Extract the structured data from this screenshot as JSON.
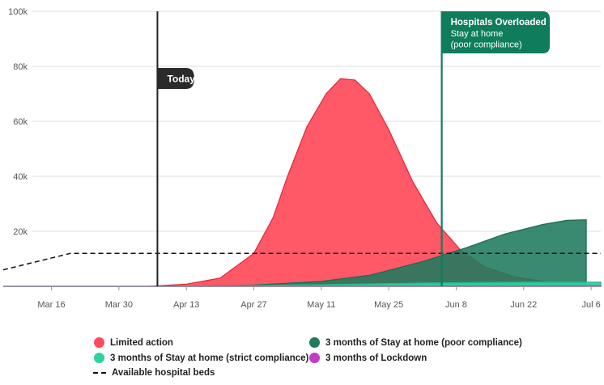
{
  "chart_data": {
    "type": "area",
    "y_ticks": [
      "100k",
      "80k",
      "60k",
      "40k",
      "20k"
    ],
    "ylim": [
      0,
      100000
    ],
    "x_ticks": [
      "Mar 16",
      "Mar 30",
      "Apr 13",
      "Apr 27",
      "May 11",
      "May 25",
      "Jun 8",
      "Jun 22",
      "Jul 6"
    ],
    "x_range": [
      "2020-03-06",
      "2020-07-08"
    ],
    "grid": true,
    "legend_position": "bottom",
    "series": [
      {
        "name": "Limited action",
        "color": "#ff4a5a",
        "line_color": "#e0283c",
        "points": [
          [
            "2020-03-06",
            0
          ],
          [
            "2020-04-05",
            0
          ],
          [
            "2020-04-13",
            800
          ],
          [
            "2020-04-20",
            3000
          ],
          [
            "2020-04-27",
            12000
          ],
          [
            "2020-05-01",
            25000
          ],
          [
            "2020-05-04",
            40000
          ],
          [
            "2020-05-08",
            58000
          ],
          [
            "2020-05-12",
            70000
          ],
          [
            "2020-05-15",
            75500
          ],
          [
            "2020-05-18",
            75000
          ],
          [
            "2020-05-21",
            70000
          ],
          [
            "2020-05-25",
            57000
          ],
          [
            "2020-05-30",
            38000
          ],
          [
            "2020-06-04",
            23000
          ],
          [
            "2020-06-09",
            13000
          ],
          [
            "2020-06-14",
            7000
          ],
          [
            "2020-06-20",
            3500
          ],
          [
            "2020-06-27",
            1500
          ],
          [
            "2020-07-08",
            500
          ]
        ]
      },
      {
        "name": "3 months of Stay at home (poor compliance)",
        "color": "#1f7a5e",
        "line_color": "#1a6b52",
        "points": [
          [
            "2020-03-06",
            0
          ],
          [
            "2020-04-05",
            0
          ],
          [
            "2020-04-20",
            200
          ],
          [
            "2020-04-27",
            500
          ],
          [
            "2020-05-11",
            1800
          ],
          [
            "2020-05-21",
            4000
          ],
          [
            "2020-06-01",
            9000
          ],
          [
            "2020-06-10",
            14000
          ],
          [
            "2020-06-18",
            19000
          ],
          [
            "2020-06-26",
            22500
          ],
          [
            "2020-07-01",
            24000
          ],
          [
            "2020-07-05",
            24200
          ],
          [
            "2020-07-05",
            0
          ]
        ]
      },
      {
        "name": "3 months of Stay at home (strict compliance)",
        "color": "#2fd39e",
        "line_color": "#1fb889",
        "points": [
          [
            "2020-03-06",
            0
          ],
          [
            "2020-04-05",
            0
          ],
          [
            "2020-04-20",
            200
          ],
          [
            "2020-05-11",
            600
          ],
          [
            "2020-06-01",
            1200
          ],
          [
            "2020-06-22",
            1500
          ],
          [
            "2020-07-08",
            1500
          ]
        ]
      },
      {
        "name": "3 months of Lockdown",
        "color": "#c13dc6",
        "line_color": "#b02fb5",
        "points": [
          [
            "2020-03-06",
            0
          ],
          [
            "2020-04-05",
            0
          ],
          [
            "2020-05-11",
            100
          ],
          [
            "2020-07-08",
            150
          ]
        ]
      }
    ],
    "reference_lines": [
      {
        "name": "Available hospital beds",
        "style": "dashed",
        "color": "#111111",
        "points": [
          [
            "2020-03-06",
            6000
          ],
          [
            "2020-03-20",
            12000
          ],
          [
            "2020-07-08",
            12000
          ]
        ]
      }
    ],
    "annotations": [
      {
        "date": "2020-04-07",
        "label": "Today",
        "color": "#222222"
      },
      {
        "date": "2020-06-05",
        "title": "Hospitals Overloaded",
        "lines": [
          "Stay at home",
          "(poor compliance)"
        ],
        "color": "#0f7d5c"
      }
    ]
  },
  "legend": {
    "items": [
      {
        "label": "Limited action",
        "color": "#ff4a5a",
        "type": "dot"
      },
      {
        "label": "3 months of Stay at home (poor compliance)",
        "color": "#1f7a5e",
        "type": "dot"
      },
      {
        "label": "3 months of Stay at home (strict compliance)",
        "color": "#2fd39e",
        "type": "dot"
      },
      {
        "label": "3 months of Lockdown",
        "color": "#c13dc6",
        "type": "dot"
      },
      {
        "label": "Available hospital beds",
        "color": "#111111",
        "type": "dash"
      }
    ]
  }
}
